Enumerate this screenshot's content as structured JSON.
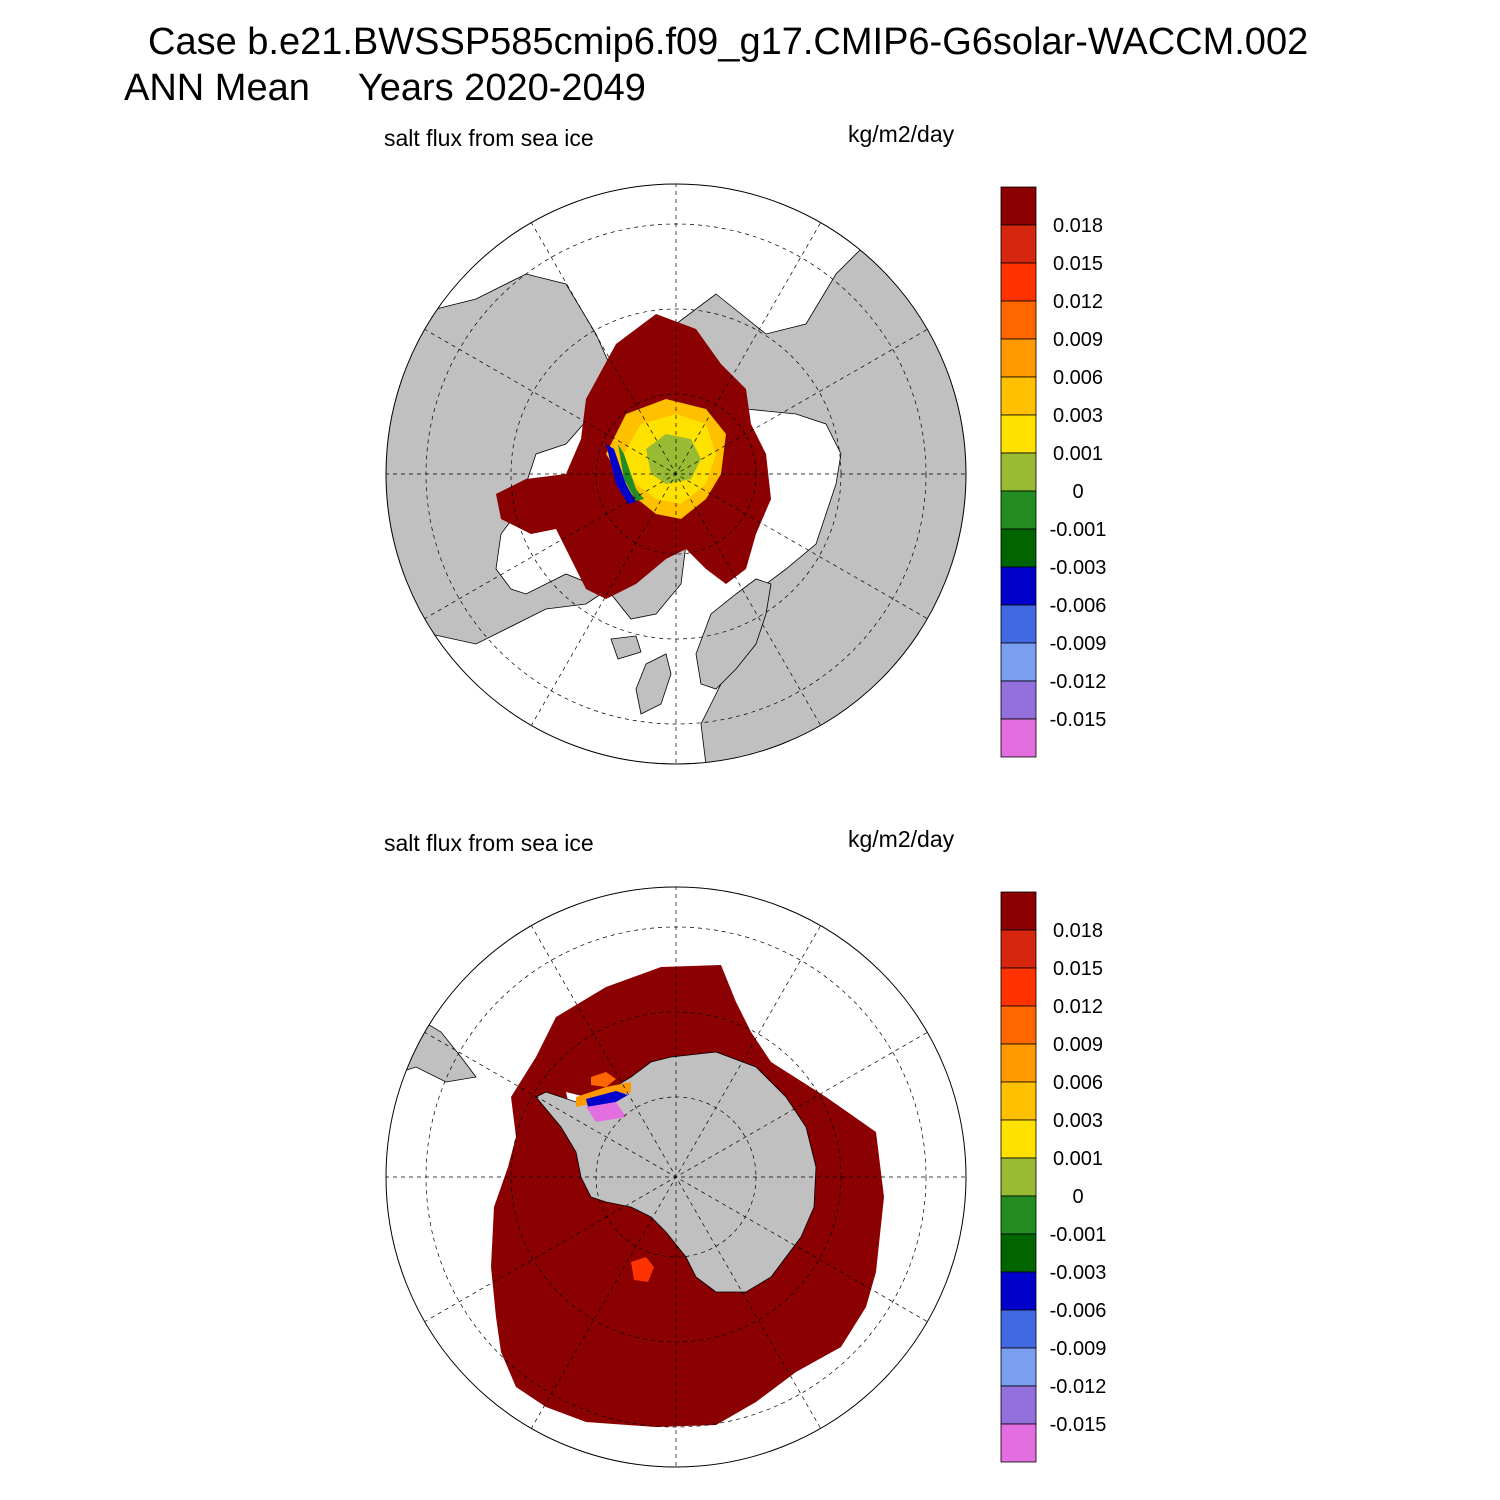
{
  "title": {
    "case_line": "Case b.e21.BWSSP585cmip6.f09_g17.CMIP6-G6solar-WACCM.002",
    "season": "ANN Mean",
    "years": "Years 2020-2049"
  },
  "panels": [
    {
      "id": "north",
      "hemisphere": "Northern Hemisphere polar stereographic",
      "variable_label": "salt flux from sea ice",
      "units_label": "kg/m2/day"
    },
    {
      "id": "south",
      "hemisphere": "Southern Hemisphere polar stereographic",
      "variable_label": "salt flux from sea ice",
      "units_label": "kg/m2/day"
    }
  ],
  "colorbar": {
    "colors": [
      "#8b0000",
      "#d6260f",
      "#ff3300",
      "#ff6600",
      "#ff9900",
      "#ffc000",
      "#ffe100",
      "#99bb33",
      "#228b22",
      "#006400",
      "#0000cd",
      "#4169e1",
      "#7b9ff0",
      "#9370db",
      "#e36ee0"
    ],
    "labels": [
      "0.018",
      "0.015",
      "0.012",
      "0.009",
      "0.006",
      "0.003",
      "0.001",
      "0",
      "-0.001",
      "-0.003",
      "-0.006",
      "-0.009",
      "-0.012",
      "-0.015"
    ]
  },
  "style": {
    "land_color": "#c0c0c0",
    "ocean_color": "#ffffff",
    "max_value_color": "#8b0000"
  }
}
